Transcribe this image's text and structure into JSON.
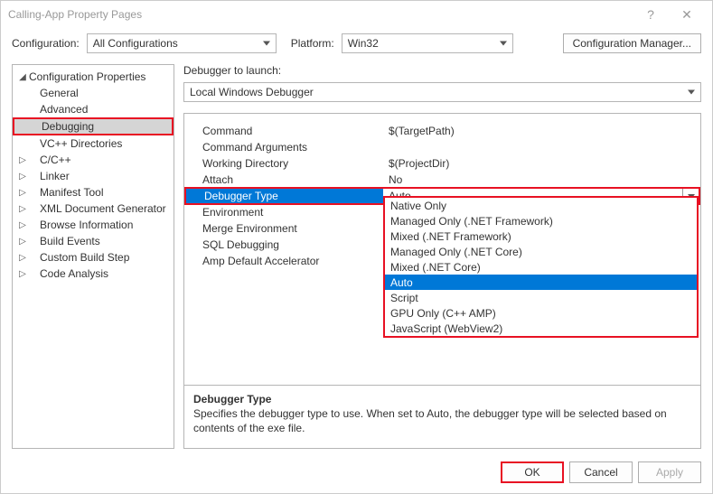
{
  "window": {
    "title": "Calling-App Property Pages",
    "help": "?",
    "close": "✕"
  },
  "toprow": {
    "config_label": "Configuration:",
    "config_value": "All Configurations",
    "platform_label": "Platform:",
    "platform_value": "Win32",
    "manager_button": "Configuration Manager..."
  },
  "tree": {
    "root": "Configuration Properties",
    "items": [
      {
        "label": "General",
        "expandable": false
      },
      {
        "label": "Advanced",
        "expandable": false
      },
      {
        "label": "Debugging",
        "expandable": false,
        "selected": true
      },
      {
        "label": "VC++ Directories",
        "expandable": false
      },
      {
        "label": "C/C++",
        "expandable": true
      },
      {
        "label": "Linker",
        "expandable": true
      },
      {
        "label": "Manifest Tool",
        "expandable": true
      },
      {
        "label": "XML Document Generator",
        "expandable": true
      },
      {
        "label": "Browse Information",
        "expandable": true
      },
      {
        "label": "Build Events",
        "expandable": true
      },
      {
        "label": "Custom Build Step",
        "expandable": true
      },
      {
        "label": "Code Analysis",
        "expandable": true
      }
    ]
  },
  "debugger": {
    "launch_label": "Debugger to launch:",
    "launch_value": "Local Windows Debugger",
    "properties": [
      {
        "name": "Command",
        "value": "$(TargetPath)"
      },
      {
        "name": "Command Arguments",
        "value": ""
      },
      {
        "name": "Working Directory",
        "value": "$(ProjectDir)"
      },
      {
        "name": "Attach",
        "value": "No"
      },
      {
        "name": "Debugger Type",
        "value": "Auto",
        "selected": true
      },
      {
        "name": "Environment",
        "value": ""
      },
      {
        "name": "Merge Environment",
        "value": ""
      },
      {
        "name": "SQL Debugging",
        "value": ""
      },
      {
        "name": "Amp Default Accelerator",
        "value": ""
      }
    ],
    "dropdown_options": [
      "Native Only",
      "Managed Only (.NET Framework)",
      "Mixed (.NET Framework)",
      "Managed Only (.NET Core)",
      "Mixed (.NET Core)",
      "Auto",
      "Script",
      "GPU Only (C++ AMP)",
      "JavaScript (WebView2)"
    ],
    "dropdown_selected": "Auto"
  },
  "description": {
    "title": "Debugger Type",
    "text": "Specifies the debugger type to use. When set to Auto, the debugger type will be selected based on contents of the exe file."
  },
  "buttons": {
    "ok": "OK",
    "cancel": "Cancel",
    "apply": "Apply"
  },
  "colors": {
    "highlight_border": "#e81123",
    "selection_bg": "#0078d7",
    "tree_sel_bg": "#d5d5d5",
    "border": "#b5b5b5"
  }
}
